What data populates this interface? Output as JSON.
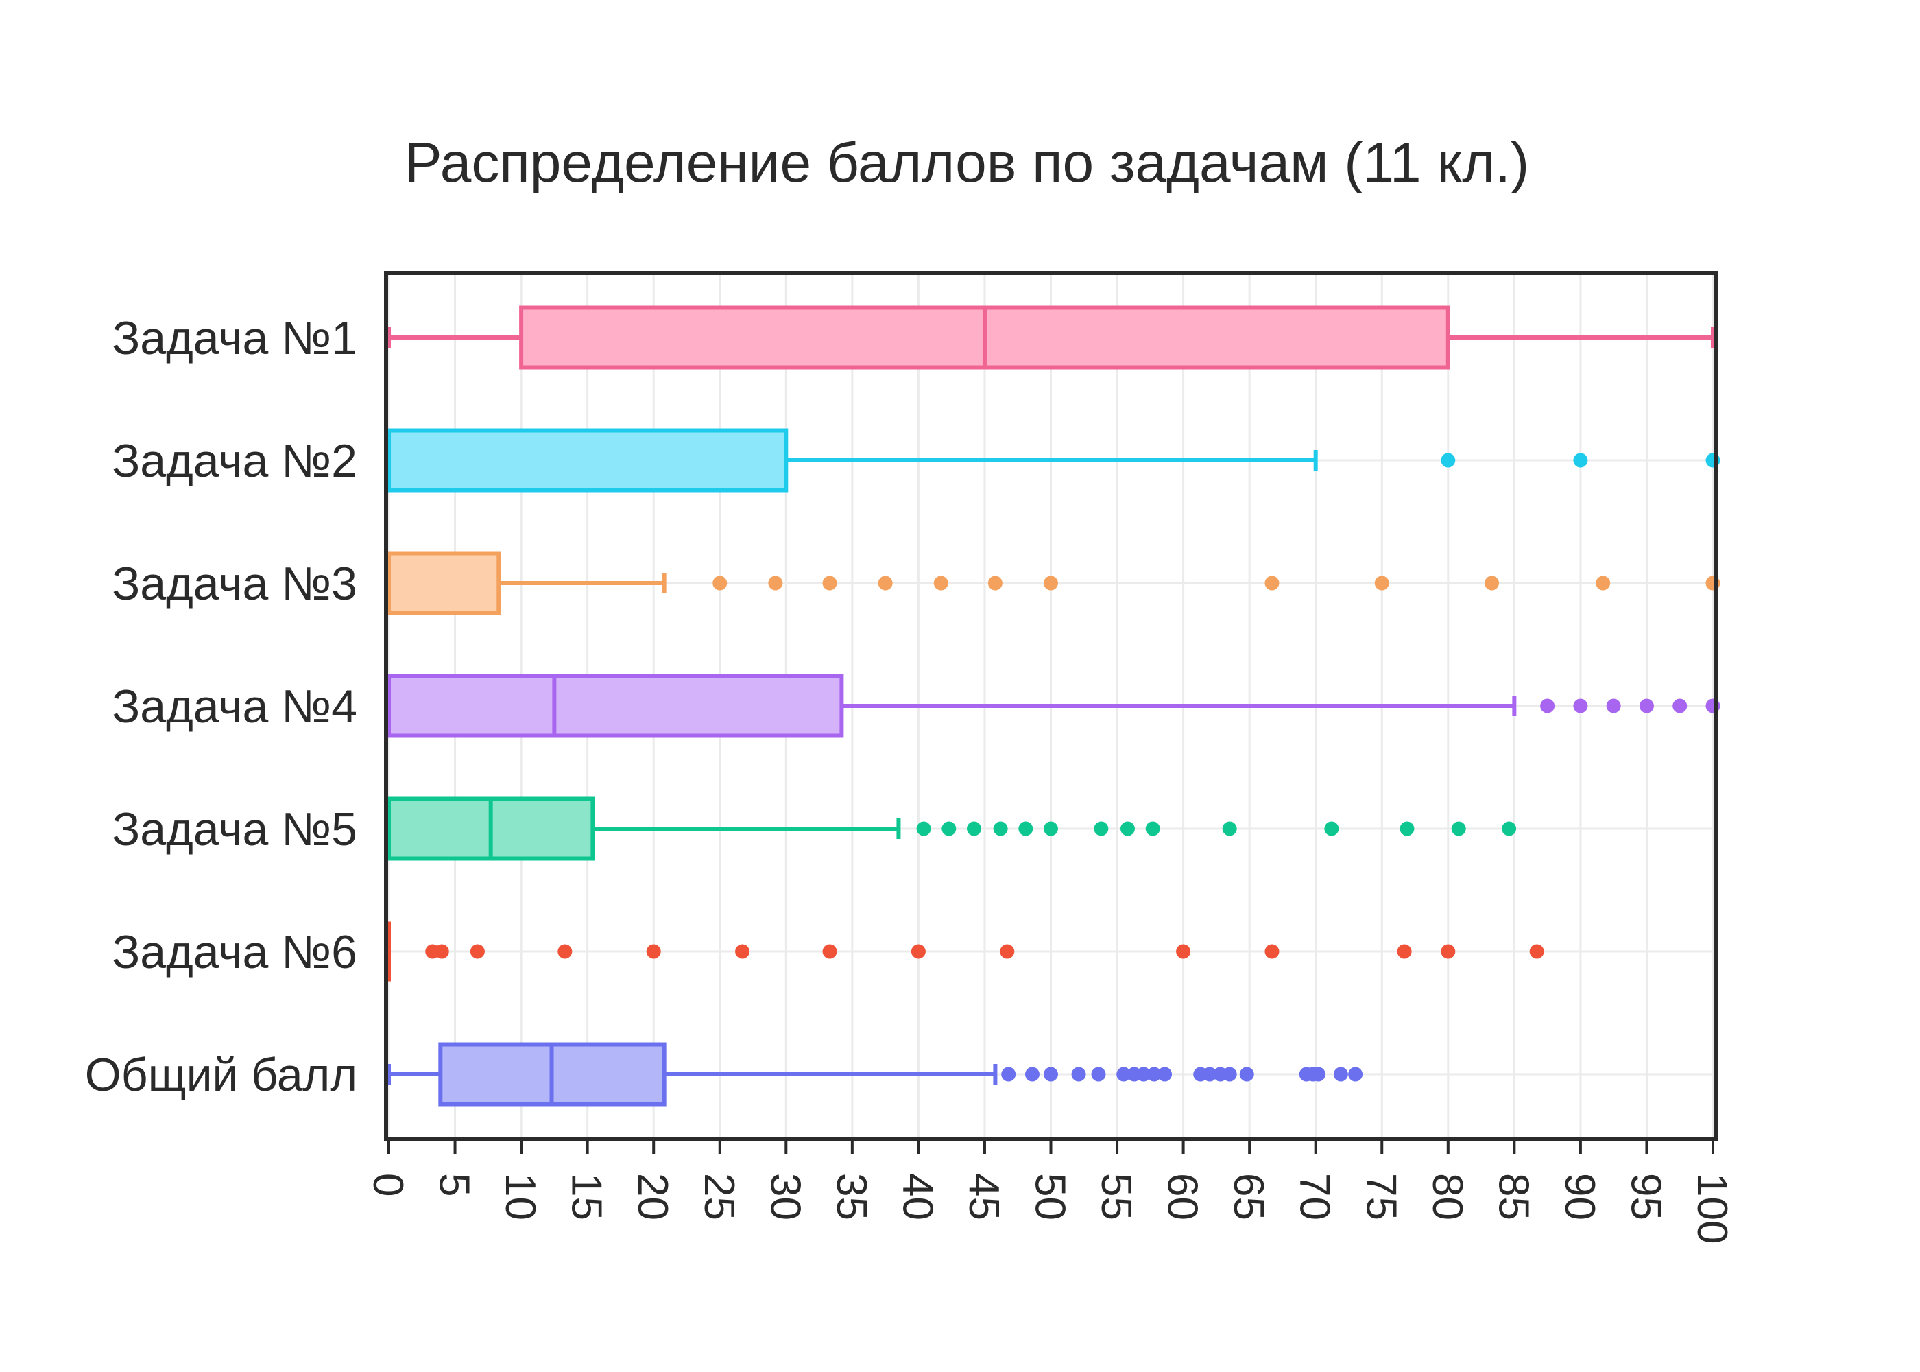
{
  "chart_data": {
    "type": "box",
    "orientation": "horizontal",
    "title": "Распределение баллов по задачам (11 кл.)",
    "xlabel": "",
    "ylabel": "",
    "xlim": [
      0,
      100
    ],
    "x_ticks": [
      0,
      5,
      10,
      15,
      20,
      25,
      30,
      35,
      40,
      45,
      50,
      55,
      60,
      65,
      70,
      75,
      80,
      85,
      90,
      95,
      100
    ],
    "grid": true,
    "series": [
      {
        "label": "Задача №1",
        "color": "#f06493",
        "fill": "#ffafc7",
        "whisker_low": 0,
        "q1": 10,
        "median": 45,
        "q3": 80,
        "whisker_high": 100,
        "outliers": []
      },
      {
        "label": "Задача №2",
        "color": "#1fcbeb",
        "fill": "#8be7f9",
        "whisker_low": 0,
        "q1": 0,
        "median": 0,
        "q3": 30,
        "whisker_high": 70,
        "outliers": [
          80,
          90,
          100
        ]
      },
      {
        "label": "Задача №3",
        "color": "#f4a15d",
        "fill": "#fdd0ab",
        "whisker_low": 0,
        "q1": 0,
        "median": 0,
        "q3": 8.3,
        "whisker_high": 20.8,
        "outliers": [
          25,
          29.2,
          33.3,
          37.5,
          41.7,
          45.8,
          50,
          66.7,
          75,
          83.3,
          91.7,
          100
        ]
      },
      {
        "label": "Задача №4",
        "color": "#a865f0",
        "fill": "#d4b3fa",
        "whisker_low": 0,
        "q1": 0,
        "median": 12.5,
        "q3": 34.2,
        "whisker_high": 85,
        "outliers": [
          87.5,
          90,
          92.5,
          95,
          97.5,
          100
        ]
      },
      {
        "label": "Задача №5",
        "color": "#0dc690",
        "fill": "#8ae5c9",
        "whisker_low": 0,
        "q1": 0,
        "median": 7.7,
        "q3": 15.4,
        "whisker_high": 38.5,
        "outliers": [
          40.4,
          42.3,
          44.2,
          46.2,
          48.1,
          50,
          53.8,
          55.8,
          57.7,
          63.5,
          71.2,
          76.9,
          80.8,
          84.6
        ]
      },
      {
        "label": "Задача №6",
        "color": "#ef5237",
        "fill": "#f9a99b",
        "whisker_low": 0,
        "q1": 0,
        "median": 0,
        "q3": 0,
        "whisker_high": 0,
        "outliers": [
          3.3,
          4,
          6.7,
          13.3,
          20,
          26.7,
          33.3,
          40,
          46.7,
          60,
          66.7,
          76.7,
          80,
          86.7
        ]
      },
      {
        "label": "Общий балл",
        "color": "#6a70ee",
        "fill": "#b3b6f8",
        "whisker_low": 0,
        "q1": 3.9,
        "median": 12.3,
        "q3": 20.8,
        "whisker_high": 45.8,
        "outliers": [
          46.8,
          48.6,
          50,
          52.1,
          53.6,
          55.5,
          56.3,
          57,
          57.8,
          58.6,
          61.3,
          62,
          62.8,
          63.5,
          64.8,
          69.3,
          69.8,
          70.2,
          71.9,
          73
        ]
      }
    ]
  }
}
